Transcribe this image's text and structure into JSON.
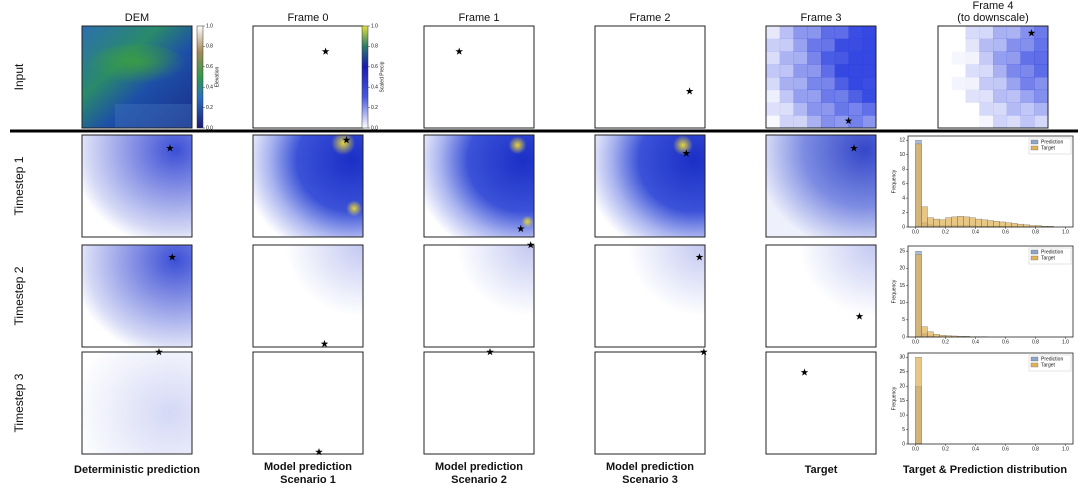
{
  "columns": [
    [
      "DEM"
    ],
    [
      "Frame 0"
    ],
    [
      "Frame 1"
    ],
    [
      "Frame 2"
    ],
    [
      "Frame 3"
    ],
    [
      "Frame 4",
      "(to downscale)"
    ]
  ],
  "rows": [
    "Input",
    "Timestep 1",
    "Timestep 2",
    "Timestep 3"
  ],
  "footer": [
    [
      "Deterministic prediction"
    ],
    [
      "Model prediction",
      "Scenario 1"
    ],
    [
      "Model prediction",
      "Scenario 2"
    ],
    [
      "Model prediction",
      "Scenario 3"
    ],
    [
      "Target"
    ],
    [
      "Target & Prediction distribution"
    ]
  ],
  "colorbars": [
    {
      "label": "Elevation",
      "lim": [
        0,
        1
      ],
      "ticks": [
        {
          "value": 0,
          "label": "0.0"
        },
        {
          "value": 0.2,
          "label": "0.2"
        },
        {
          "value": 0.4,
          "label": "0.4"
        },
        {
          "value": 0.6,
          "label": "0.6"
        },
        {
          "value": 0.8,
          "label": "0.8"
        },
        {
          "value": 1,
          "label": "1.0"
        }
      ]
    },
    {
      "label": "Scaled Precip",
      "lim": [
        0,
        1
      ],
      "ticks": [
        {
          "value": 0,
          "label": "0.0"
        },
        {
          "value": 0.2,
          "label": "0.2"
        },
        {
          "value": 0.4,
          "label": "0.4"
        },
        {
          "value": 0.6,
          "label": "0.6"
        },
        {
          "value": 0.8,
          "label": "0.8"
        },
        {
          "value": 1,
          "label": "1.0"
        }
      ]
    }
  ],
  "histograms": {
    "bins": [
      0,
      0.04,
      0.08,
      0.12,
      0.16,
      0.2,
      0.24,
      0.28,
      0.32,
      0.36,
      0.4,
      0.44,
      0.48,
      0.52,
      0.56,
      0.6,
      0.64,
      0.68,
      0.72,
      0.76,
      0.8,
      0.84,
      0.88,
      0.92,
      0.96,
      1
    ],
    "xlim": [
      -0.05,
      1.05
    ],
    "xticks": [
      {
        "value": 0,
        "label": "0.0"
      },
      {
        "value": 0.2,
        "label": "0.2"
      },
      {
        "value": 0.4,
        "label": "0.4"
      },
      {
        "value": 0.6,
        "label": "0.6"
      },
      {
        "value": 0.8,
        "label": "0.8"
      },
      {
        "value": 1,
        "label": "1.0"
      }
    ],
    "ylabel": "Frequency",
    "panels": [
      {
        "ylim": [
          0,
          12.6
        ],
        "yticks": [
          0,
          2,
          4,
          6,
          8,
          10,
          12
        ],
        "series": [
          {
            "name": "Prediction",
            "color": "#8fa6c9",
            "values": [
              12,
              0.6,
              0.3,
              0.2,
              0.2,
              0.2,
              0.2,
              0.2,
              0.2,
              0.2,
              0.1,
              0.1,
              0.1,
              0.1,
              0.1,
              0.05,
              0.05,
              0,
              0,
              0,
              0,
              0,
              0,
              0,
              0
            ]
          },
          {
            "name": "Target",
            "color": "#e0b35a",
            "values": [
              11.5,
              2.8,
              1.3,
              1.1,
              1.0,
              1.3,
              1.4,
              1.5,
              1.4,
              1.3,
              1.1,
              1.0,
              0.9,
              0.8,
              0.7,
              0.6,
              0.5,
              0.4,
              0.3,
              0.2,
              0.2,
              0.1,
              0.1,
              0,
              0
            ]
          }
        ]
      },
      {
        "ylim": [
          0,
          26.5
        ],
        "yticks": [
          0,
          5,
          10,
          15,
          20,
          25
        ],
        "series": [
          {
            "name": "Prediction",
            "color": "#8fa6c9",
            "values": [
              25,
              1,
              0.3,
              0.1,
              0,
              0,
              0,
              0,
              0,
              0,
              0,
              0,
              0,
              0,
              0,
              0,
              0,
              0,
              0,
              0,
              0,
              0,
              0,
              0,
              0
            ]
          },
          {
            "name": "Target",
            "color": "#e0b35a",
            "values": [
              24,
              3,
              1.5,
              0.8,
              0.5,
              0.4,
              0.3,
              0.2,
              0.2,
              0.1,
              0.1,
              0.05,
              0,
              0,
              0,
              0,
              0,
              0,
              0,
              0,
              0,
              0,
              0,
              0,
              0
            ]
          }
        ]
      },
      {
        "ylim": [
          0,
          31.5
        ],
        "yticks": [
          0,
          5,
          10,
          15,
          20,
          25,
          30
        ],
        "series": [
          {
            "name": "Prediction",
            "color": "#8fa6c9",
            "values": [
              20,
              0,
              0,
              0,
              0,
              0,
              0,
              0,
              0,
              0,
              0,
              0,
              0,
              0,
              0,
              0,
              0,
              0,
              0,
              0,
              0,
              0,
              0,
              0,
              0
            ]
          },
          {
            "name": "Target",
            "color": "#e0b35a",
            "values": [
              30,
              0,
              0,
              0,
              0,
              0,
              0,
              0,
              0,
              0,
              0,
              0,
              0,
              0,
              0,
              0,
              0,
              0,
              0,
              0,
              0,
              0,
              0,
              0,
              0
            ]
          }
        ]
      }
    ]
  }
}
